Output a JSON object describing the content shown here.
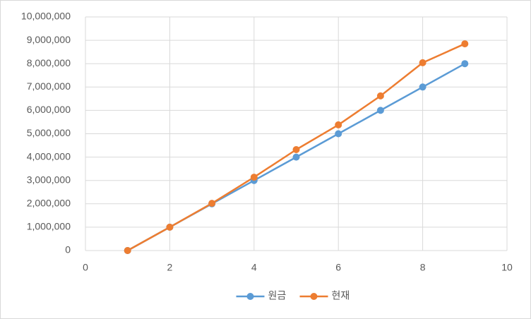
{
  "chart_data": {
    "type": "scatter-line",
    "x": [
      1,
      2,
      3,
      4,
      5,
      6,
      7,
      8,
      9
    ],
    "series": [
      {
        "name": "원금",
        "color": "#5b9bd5",
        "values": [
          0,
          1000000,
          2000000,
          3000000,
          4000000,
          5000000,
          6000000,
          7000000,
          8000000
        ]
      },
      {
        "name": "현재",
        "color": "#ed7d31",
        "values": [
          0,
          1000000,
          2020000,
          3140000,
          4320000,
          5380000,
          6620000,
          8040000,
          8850000
        ]
      }
    ],
    "xlim": [
      0,
      10
    ],
    "xticks": [
      0,
      2,
      4,
      6,
      8,
      10
    ],
    "ylim": [
      0,
      10000000
    ],
    "yticks": [
      0,
      {
        "value": 1000000,
        "label": "1,000,000"
      },
      {
        "value": 2000000,
        "label": "2,000,000"
      },
      {
        "value": 3000000,
        "label": "3,000,000"
      },
      {
        "value": 4000000,
        "label": "4,000,000"
      },
      {
        "value": 5000000,
        "label": "5,000,000"
      },
      {
        "value": 6000000,
        "label": "6,000,000"
      },
      {
        "value": 7000000,
        "label": "7,000,000"
      },
      {
        "value": 8000000,
        "label": "8,000,000"
      },
      {
        "value": 9000000,
        "label": "9,000,000"
      },
      {
        "value": 10000000,
        "label": "10,000,000"
      }
    ],
    "grid": true,
    "legend": "bottom"
  }
}
